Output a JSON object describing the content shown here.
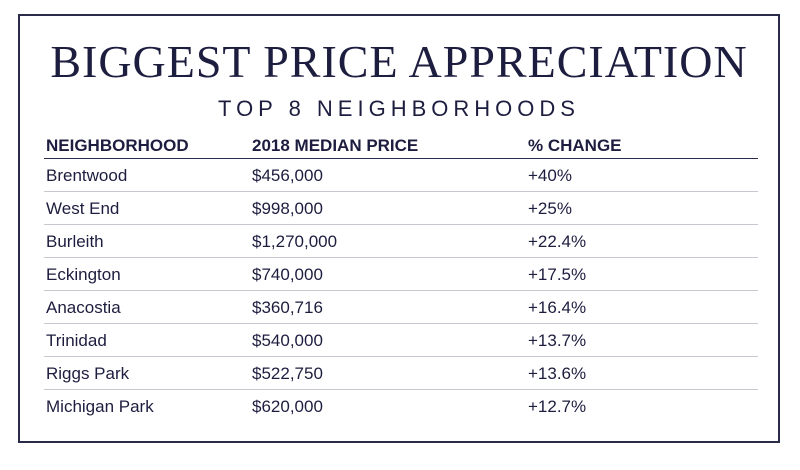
{
  "title": "BIGGEST PRICE APPRECIATION",
  "subtitle": "TOP 8 NEIGHBORHOODS",
  "table": {
    "headers": [
      "NEIGHBORHOOD",
      "2018 MEDIAN PRICE",
      "% CHANGE"
    ],
    "rows": [
      [
        "Brentwood",
        "$456,000",
        "+40%"
      ],
      [
        "West End",
        "$998,000",
        "+25%"
      ],
      [
        "Burleith",
        "$1,270,000",
        "+22.4%"
      ],
      [
        "Eckington",
        "$740,000",
        "+17.5%"
      ],
      [
        "Anacostia",
        "$360,716",
        "+16.4%"
      ],
      [
        "Trinidad",
        "$540,000",
        "+13.7%"
      ],
      [
        "Riggs Park",
        "$522,750",
        "+13.6%"
      ],
      [
        "Michigan Park",
        "$620,000",
        "+12.7%"
      ]
    ]
  },
  "colors": {
    "text": "#1d1d3f",
    "border": "#2a2a4a",
    "row_divider": "#c8c8d0"
  }
}
